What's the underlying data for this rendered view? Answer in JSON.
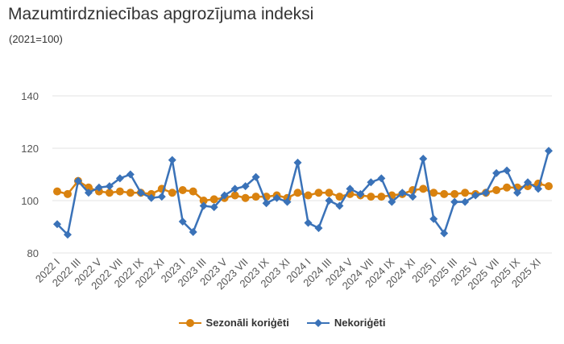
{
  "chart_data": {
    "type": "line",
    "title": "Mazumtirdzniecības apgrozījuma indeksi",
    "subtitle": "(2021=100)",
    "ylim": [
      80,
      140
    ],
    "yticks": [
      80,
      100,
      120,
      140
    ],
    "grid": true,
    "legend_position": "bottom",
    "x": [
      "2022 I",
      "2022 II",
      "2022 III",
      "2022 IV",
      "2022 V",
      "2022 VI",
      "2022 VII",
      "2022 VIII",
      "2022 IX",
      "2022 X",
      "2022 XI",
      "2022 XII",
      "2023 I",
      "2023 II",
      "2023 III",
      "2023 IV",
      "2023 V",
      "2023 VI",
      "2023 VII",
      "2023 VIII",
      "2023 IX",
      "2023 X",
      "2023 XI",
      "2023 XII",
      "2024 I",
      "2024 II",
      "2024 III",
      "2024 IV",
      "2024 V",
      "2024 VI",
      "2024 VII",
      "2024 VIII",
      "2024 IX",
      "2024 X",
      "2024 XI",
      "2024 XII",
      "2025 I",
      "2025 II",
      "2025 III",
      "2025 IV",
      "2025 V",
      "2025 VI",
      "2025 VII",
      "2025 VIII",
      "2025 IX",
      "2025 X",
      "2025 XI",
      "2025 XII"
    ],
    "series": [
      {
        "name": "Sezonāli koriģēti",
        "color": "#d9820f",
        "marker": "circle",
        "values": [
          103.5,
          102.5,
          107.5,
          105,
          103.5,
          103,
          103.5,
          103,
          103,
          102.5,
          104.5,
          103,
          104,
          103.5,
          100,
          100.5,
          101,
          102,
          101,
          101.5,
          101.5,
          102,
          101,
          103,
          102,
          103,
          103,
          101.5,
          102.5,
          102,
          101.5,
          101.5,
          102,
          102.5,
          104,
          104.5,
          103,
          102.5,
          102.5,
          103,
          102.5,
          103,
          104,
          105,
          105,
          105.5,
          106.5,
          105.5
        ]
      },
      {
        "name": "Nekoriģēti",
        "color": "#3a72b8",
        "marker": "diamond",
        "values": [
          91,
          87,
          107.5,
          103,
          105,
          105.5,
          108.5,
          110,
          103,
          101,
          101.5,
          115.5,
          92,
          88,
          98,
          97.5,
          102,
          104.5,
          105.5,
          109,
          99,
          101,
          99.5,
          114.5,
          91.5,
          89.5,
          100,
          98,
          104.5,
          102.5,
          107,
          108.5,
          99.5,
          103,
          101.5,
          116,
          93,
          87.5,
          99.5,
          99.5,
          102,
          103,
          110.5,
          111.5,
          103,
          107,
          104.5,
          119
        ]
      }
    ]
  }
}
